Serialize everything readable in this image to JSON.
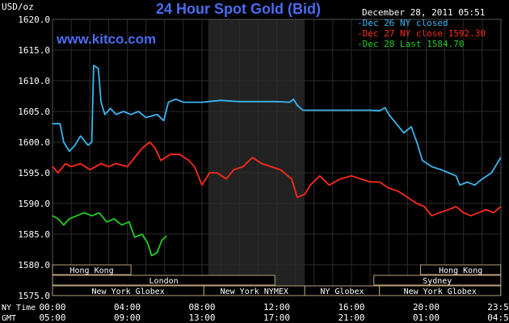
{
  "header": {
    "unit": "USD/oz",
    "title": "24 Hour Spot Gold (Bid)",
    "timestamp": "December 28, 2011 05:51",
    "website": "www.kitco.com"
  },
  "legend": [
    {
      "label": "Dec 26 NY closed",
      "color": "#3bb5f0"
    },
    {
      "label": "Dec 27 NY close 1592.30",
      "color": "#ff2a1a"
    },
    {
      "label": "Dec 28 Last 1584.70",
      "color": "#22cc22"
    }
  ],
  "axis": {
    "ny_time_label": "NY Time",
    "gmt_label": "GMT",
    "ny_ticks": [
      "00:00",
      "04:00",
      "08:00",
      "12:00",
      "16:00",
      "20:00",
      "23:59"
    ],
    "gmt_ticks": [
      "05:00",
      "09:00",
      "13:00",
      "17:00",
      "21:00",
      "01:00",
      "04:59"
    ]
  },
  "sessions": {
    "hong_kong_left": "Hong Kong",
    "london": "London",
    "ny_globex_left": "New York Globex",
    "ny_nymex": "New York NYMEX",
    "ny_globex_mid": "NY Globex",
    "sydney": "Sydney",
    "hong_kong_right": "Hong Kong",
    "ny_globex_right": "New York Globex"
  },
  "chart_data": {
    "type": "line",
    "title": "24 Hour Spot Gold (Bid)",
    "ylabel": "USD/oz",
    "ylim": [
      1575,
      1620
    ],
    "yticks": [
      "1575.0",
      "1580.0",
      "1585.0",
      "1590.0",
      "1595.0",
      "1600.0",
      "1605.0",
      "1610.0",
      "1615.0",
      "1620.0"
    ],
    "xlim": [
      0,
      24
    ],
    "x_unit": "hours since 00:00 NY time",
    "grid": true,
    "legend_position": "top-right",
    "series": [
      {
        "name": "Dec 26 NY closed",
        "color": "#3bb5f0",
        "points": [
          [
            0,
            1603
          ],
          [
            0.4,
            1603
          ],
          [
            0.6,
            1600
          ],
          [
            0.9,
            1598.5
          ],
          [
            1.2,
            1599.5
          ],
          [
            1.5,
            1601
          ],
          [
            1.9,
            1599.5
          ],
          [
            2.1,
            1600
          ],
          [
            2.2,
            1612.5
          ],
          [
            2.45,
            1612
          ],
          [
            2.6,
            1606.5
          ],
          [
            2.8,
            1604.5
          ],
          [
            3.1,
            1605.5
          ],
          [
            3.4,
            1604.5
          ],
          [
            3.8,
            1605
          ],
          [
            4.2,
            1604.5
          ],
          [
            4.6,
            1605
          ],
          [
            5,
            1604
          ],
          [
            5.6,
            1604.5
          ],
          [
            5.95,
            1603.5
          ],
          [
            6.2,
            1606.5
          ],
          [
            6.6,
            1607
          ],
          [
            7,
            1606.5
          ],
          [
            7.4,
            1606.5
          ],
          [
            8,
            1606.5
          ],
          [
            9,
            1606.8
          ],
          [
            10,
            1606.6
          ],
          [
            11,
            1606.6
          ],
          [
            12,
            1606.6
          ],
          [
            12.7,
            1606.5
          ],
          [
            12.9,
            1607
          ],
          [
            13.1,
            1606
          ],
          [
            13.4,
            1605.2
          ],
          [
            14,
            1605.2
          ],
          [
            15,
            1605.2
          ],
          [
            16,
            1605.2
          ],
          [
            17,
            1605.2
          ],
          [
            17.5,
            1605.1
          ],
          [
            17.8,
            1605.6
          ],
          [
            18,
            1604.5
          ],
          [
            18.4,
            1603
          ],
          [
            18.8,
            1601.5
          ],
          [
            19.2,
            1602.5
          ],
          [
            19.5,
            1600
          ],
          [
            19.8,
            1597
          ],
          [
            20.3,
            1596
          ],
          [
            20.8,
            1595.5
          ],
          [
            21.2,
            1595
          ],
          [
            21.6,
            1594.5
          ],
          [
            21.8,
            1593
          ],
          [
            22.2,
            1593.5
          ],
          [
            22.6,
            1593
          ],
          [
            23,
            1594
          ],
          [
            23.5,
            1595
          ],
          [
            23.99,
            1597.5
          ]
        ]
      },
      {
        "name": "Dec 27 NY close 1592.30",
        "color": "#ff2a1a",
        "points": [
          [
            0,
            1596
          ],
          [
            0.3,
            1595
          ],
          [
            0.7,
            1596.5
          ],
          [
            1,
            1596
          ],
          [
            1.5,
            1596.5
          ],
          [
            2,
            1595.5
          ],
          [
            2.6,
            1596.5
          ],
          [
            3,
            1596
          ],
          [
            3.4,
            1596.5
          ],
          [
            4,
            1596
          ],
          [
            4.4,
            1597.5
          ],
          [
            4.8,
            1599
          ],
          [
            5.2,
            1600
          ],
          [
            5.5,
            1599
          ],
          [
            5.8,
            1597
          ],
          [
            6.3,
            1598
          ],
          [
            6.8,
            1598
          ],
          [
            7.3,
            1597
          ],
          [
            7.6,
            1596
          ],
          [
            8,
            1593
          ],
          [
            8.4,
            1595
          ],
          [
            8.8,
            1595
          ],
          [
            9.3,
            1594
          ],
          [
            9.7,
            1595.5
          ],
          [
            10.2,
            1596
          ],
          [
            10.7,
            1597.5
          ],
          [
            11.2,
            1596.5
          ],
          [
            11.7,
            1596
          ],
          [
            12.2,
            1595.5
          ],
          [
            12.8,
            1594
          ],
          [
            13.1,
            1591
          ],
          [
            13.5,
            1591.5
          ],
          [
            13.8,
            1593
          ],
          [
            14.3,
            1594.5
          ],
          [
            14.8,
            1593
          ],
          [
            15.4,
            1594
          ],
          [
            16,
            1594.5
          ],
          [
            16.5,
            1594
          ],
          [
            17,
            1593.5
          ],
          [
            17.5,
            1593.5
          ],
          [
            18,
            1592.5
          ],
          [
            18.5,
            1592
          ],
          [
            19,
            1591
          ],
          [
            19.5,
            1590
          ],
          [
            19.9,
            1589.5
          ],
          [
            20.3,
            1588
          ],
          [
            20.7,
            1588.5
          ],
          [
            21.2,
            1589
          ],
          [
            21.6,
            1589.5
          ],
          [
            22,
            1588.5
          ],
          [
            22.4,
            1588
          ],
          [
            22.8,
            1588.5
          ],
          [
            23.2,
            1589
          ],
          [
            23.6,
            1588.5
          ],
          [
            23.99,
            1589.5
          ]
        ]
      },
      {
        "name": "Dec 28 Last 1584.70",
        "color": "#22cc22",
        "points": [
          [
            0,
            1588
          ],
          [
            0.3,
            1587.5
          ],
          [
            0.6,
            1586.5
          ],
          [
            0.9,
            1587.5
          ],
          [
            1.3,
            1588
          ],
          [
            1.7,
            1588.5
          ],
          [
            2.1,
            1588
          ],
          [
            2.5,
            1588.5
          ],
          [
            2.9,
            1587
          ],
          [
            3.3,
            1587.5
          ],
          [
            3.7,
            1586.5
          ],
          [
            4.1,
            1587
          ],
          [
            4.4,
            1584.5
          ],
          [
            4.8,
            1585
          ],
          [
            5.1,
            1583.5
          ],
          [
            5.3,
            1581.5
          ],
          [
            5.6,
            1582
          ],
          [
            5.85,
            1584
          ],
          [
            6.1,
            1584.7
          ]
        ]
      }
    ]
  }
}
